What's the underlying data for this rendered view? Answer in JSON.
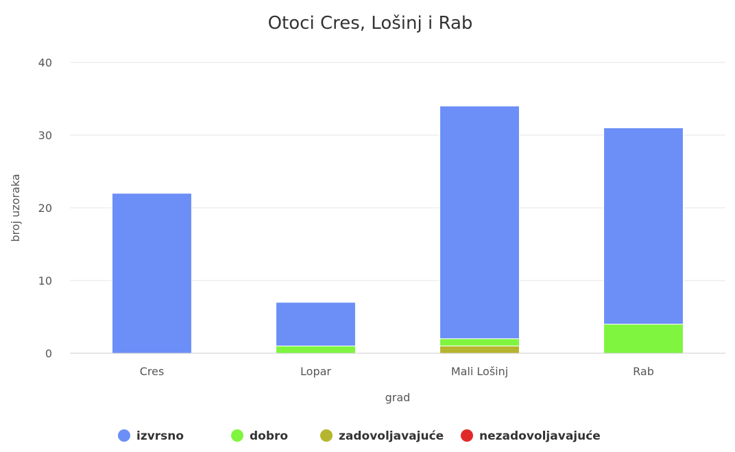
{
  "chart_data": {
    "type": "bar",
    "stacked": true,
    "title": "Otoci Cres, Lošinj i Rab",
    "xlabel": "grad",
    "ylabel": "broj uzoraka",
    "categories": [
      "Cres",
      "Lopar",
      "Mali Lošinj",
      "Rab"
    ],
    "ylim": [
      0,
      40
    ],
    "yticks": [
      0,
      10,
      20,
      30,
      40
    ],
    "grid": true,
    "legend_position": "bottom",
    "series": [
      {
        "name": "izvrsno",
        "color": "#6b8ff7",
        "values": [
          22,
          6,
          32,
          27
        ]
      },
      {
        "name": "dobro",
        "color": "#7ff53f",
        "values": [
          0,
          1,
          1,
          4
        ]
      },
      {
        "name": "zadovoljavajuće",
        "color": "#b5b52f",
        "values": [
          0,
          0,
          1,
          0
        ]
      },
      {
        "name": "nezadovoljavajuće",
        "color": "#e02a2a",
        "values": [
          0,
          0,
          0,
          0
        ]
      }
    ]
  }
}
